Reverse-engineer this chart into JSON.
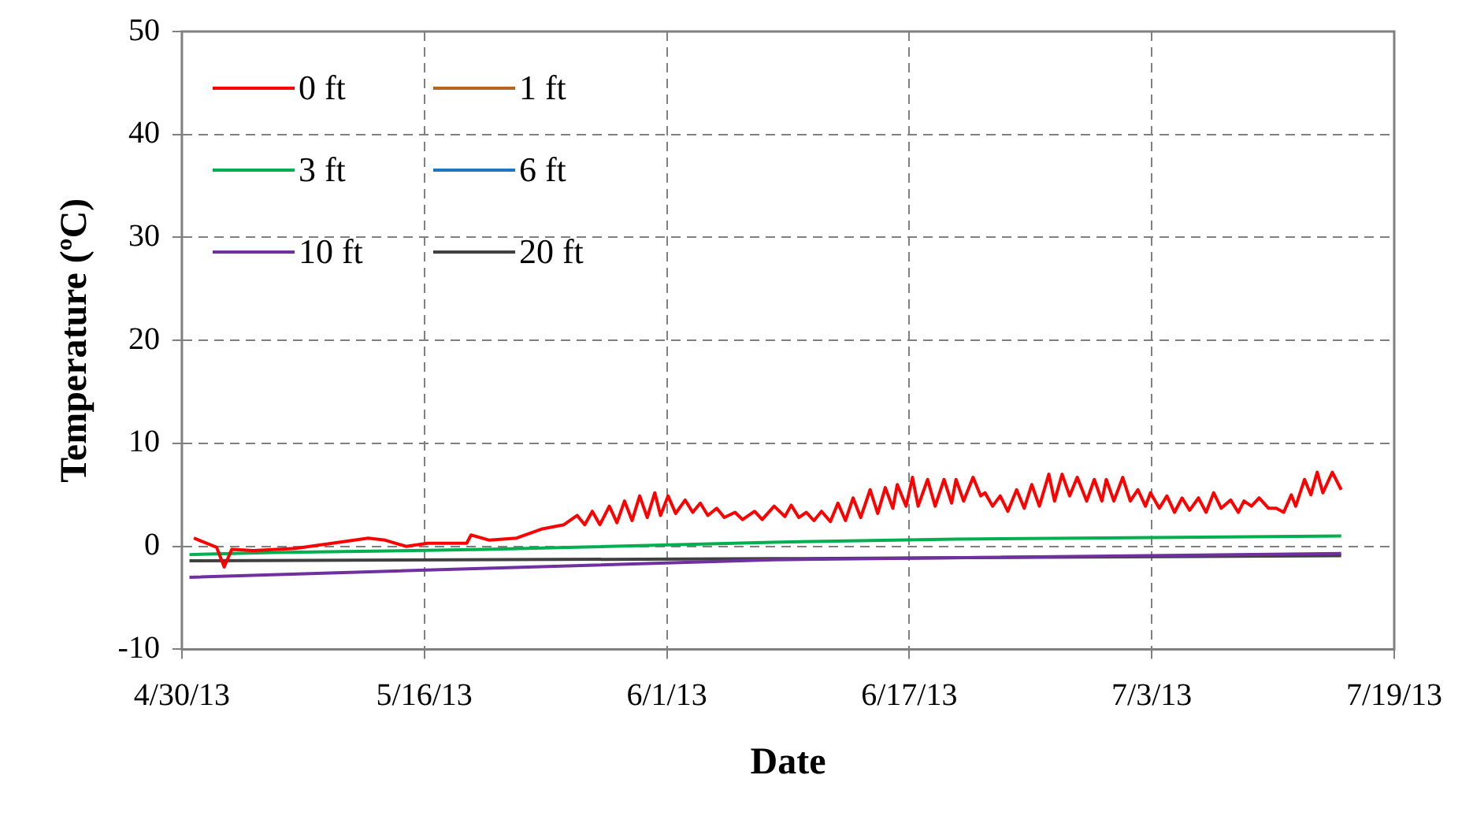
{
  "chart_data": {
    "type": "line",
    "xlabel": "Date",
    "ylabel": "Temperature (ºC)",
    "xlim": [
      "2013-04-30",
      "2013-07-19"
    ],
    "xticks": [
      {
        "value": "2013-04-30",
        "label": "4/30/13"
      },
      {
        "value": "2013-05-16",
        "label": "5/16/13"
      },
      {
        "value": "2013-06-01",
        "label": "6/1/13"
      },
      {
        "value": "2013-06-17",
        "label": "6/17/13"
      },
      {
        "value": "2013-07-03",
        "label": "7/3/13"
      },
      {
        "value": "2013-07-19",
        "label": "7/19/13"
      }
    ],
    "ylim": [
      -10,
      50
    ],
    "yticks": [
      -10,
      0,
      10,
      20,
      30,
      40,
      50
    ],
    "grid": true,
    "legend": "top left",
    "marker": "none",
    "line_style": "solid",
    "series": [
      {
        "name": "0 ft",
        "color": "#ff0000",
        "x": [
          "2013-04-30T19:00",
          "2013-05-02T07:00",
          "2013-05-02T19:00",
          "2013-05-03T07:00",
          "2013-05-04T17:00",
          "2013-05-07T12:00",
          "2013-05-09T22:00",
          "2013-05-12T07:00",
          "2013-05-13T10:00",
          "2013-05-14T19:00",
          "2013-05-16T05:00",
          "2013-05-18T19:00",
          "2013-05-19T02:00",
          "2013-05-20T07:00",
          "2013-05-22T02:00",
          "2013-05-23T19:00",
          "2013-05-25T05:00",
          "2013-05-26T02:00",
          "2013-05-26T14:00",
          "2013-05-27T02:00",
          "2013-05-27T14:00",
          "2013-05-28T05:00",
          "2013-05-28T17:00",
          "2013-05-29T05:00",
          "2013-05-29T17:00",
          "2013-05-30T05:00",
          "2013-05-30T17:00",
          "2013-05-31T05:00",
          "2013-05-31T14:00",
          "2013-06-01T02:00",
          "2013-06-01T14:00",
          "2013-06-02T05:00",
          "2013-06-02T17:00",
          "2013-06-03T05:00",
          "2013-06-03T17:00",
          "2013-06-04T07:00",
          "2013-06-04T19:00",
          "2013-06-05T12:00",
          "2013-06-06T00:00",
          "2013-06-06T19:00",
          "2013-06-07T07:00",
          "2013-06-08T02:00",
          "2013-06-08T19:00",
          "2013-06-09T05:00",
          "2013-06-09T17:00",
          "2013-06-10T05:00",
          "2013-06-10T17:00",
          "2013-06-11T05:00",
          "2013-06-11T19:00",
          "2013-06-12T07:00",
          "2013-06-12T19:00",
          "2013-06-13T07:00",
          "2013-06-13T19:00",
          "2013-06-14T10:00",
          "2013-06-14T22:00",
          "2013-06-15T10:00",
          "2013-06-15T22:00",
          "2013-06-16T05:00",
          "2013-06-16T19:00",
          "2013-06-17T05:00",
          "2013-06-17T14:00",
          "2013-06-18T05:00",
          "2013-06-18T17:00",
          "2013-06-19T07:00",
          "2013-06-19T19:00",
          "2013-06-20T02:00",
          "2013-06-20T14:00",
          "2013-06-21T05:00",
          "2013-06-21T17:00",
          "2013-06-22T00:00",
          "2013-06-22T12:00",
          "2013-06-23T00:00",
          "2013-06-23T12:00",
          "2013-06-24T02:00",
          "2013-06-24T14:00",
          "2013-06-25T02:00",
          "2013-06-25T14:00",
          "2013-06-26T05:00",
          "2013-06-26T14:00",
          "2013-06-27T02:00",
          "2013-06-27T14:00",
          "2013-06-28T02:00",
          "2013-06-28T17:00",
          "2013-06-29T05:00",
          "2013-06-29T17:00",
          "2013-06-30T00:00",
          "2013-06-30T12:00",
          "2013-07-01T02:00",
          "2013-07-01T14:00",
          "2013-07-02T02:00",
          "2013-07-02T14:00",
          "2013-07-02T22:00",
          "2013-07-03T12:00",
          "2013-07-04T00:00",
          "2013-07-04T12:00",
          "2013-07-05T00:00",
          "2013-07-05T12:00",
          "2013-07-06T02:00",
          "2013-07-06T14:00",
          "2013-07-07T02:00",
          "2013-07-07T14:00",
          "2013-07-08T05:00",
          "2013-07-08T17:00",
          "2013-07-09T02:00",
          "2013-07-09T14:00",
          "2013-07-10T02:00",
          "2013-07-10T17:00",
          "2013-07-11T05:00",
          "2013-07-11T17:00",
          "2013-07-12T05:00",
          "2013-07-12T12:00",
          "2013-07-13T02:00",
          "2013-07-13T12:00",
          "2013-07-13T22:00",
          "2013-07-14T07:00",
          "2013-07-14T22:00",
          "2013-07-15T12:00"
        ],
        "values": [
          0.8,
          -0.1,
          -2.0,
          -0.3,
          -0.4,
          -0.2,
          0.3,
          0.8,
          0.6,
          0.0,
          0.3,
          0.3,
          1.1,
          0.6,
          0.8,
          1.7,
          2.1,
          3.0,
          2.1,
          3.4,
          2.1,
          3.9,
          2.3,
          4.4,
          2.5,
          4.9,
          2.8,
          5.2,
          3.0,
          4.9,
          3.2,
          4.5,
          3.3,
          4.2,
          3.0,
          3.7,
          2.8,
          3.3,
          2.6,
          3.4,
          2.6,
          3.9,
          2.9,
          4.0,
          2.8,
          3.3,
          2.5,
          3.4,
          2.4,
          4.2,
          2.5,
          4.7,
          2.8,
          5.5,
          3.2,
          5.7,
          3.7,
          6.0,
          3.9,
          6.7,
          3.9,
          6.5,
          3.9,
          6.5,
          4.2,
          6.5,
          4.4,
          6.7,
          4.9,
          5.2,
          3.9,
          4.9,
          3.4,
          5.5,
          3.7,
          6.0,
          3.9,
          7.0,
          4.4,
          7.0,
          4.9,
          6.7,
          4.4,
          6.5,
          4.4,
          6.5,
          4.4,
          6.7,
          4.4,
          5.5,
          3.9,
          5.2,
          3.7,
          4.9,
          3.3,
          4.7,
          3.5,
          4.7,
          3.3,
          5.2,
          3.7,
          4.5,
          3.3,
          4.4,
          3.9,
          4.7,
          3.7,
          3.7,
          3.3,
          5.0,
          3.9,
          6.5,
          5.0,
          7.2,
          5.2,
          7.2,
          5.5
        ]
      },
      {
        "name": "1 ft",
        "color": "#b5651d"
      },
      {
        "name": "3 ft",
        "color": "#00b050",
        "x": [
          "2013-04-30T12:00",
          "2013-05-06T00:00",
          "2013-05-20T00:00",
          "2013-06-08T00:00",
          "2013-06-20T00:00",
          "2013-07-15T12:00"
        ],
        "values": [
          -0.8,
          -0.6,
          -0.3,
          0.4,
          0.7,
          1.0
        ]
      },
      {
        "name": "6 ft",
        "color": "#1f77c4"
      },
      {
        "name": "10 ft",
        "color": "#7030a0",
        "x": [
          "2013-04-30T12:00",
          "2013-06-08T00:00",
          "2013-07-15T12:00"
        ],
        "values": [
          -3.0,
          -1.3,
          -0.7
        ]
      },
      {
        "name": "20 ft",
        "color": "#404040",
        "x": [
          "2013-04-30T12:00",
          "2013-06-08T00:00",
          "2013-07-15T12:00"
        ],
        "values": [
          -1.4,
          -1.2,
          -0.9
        ]
      }
    ]
  }
}
